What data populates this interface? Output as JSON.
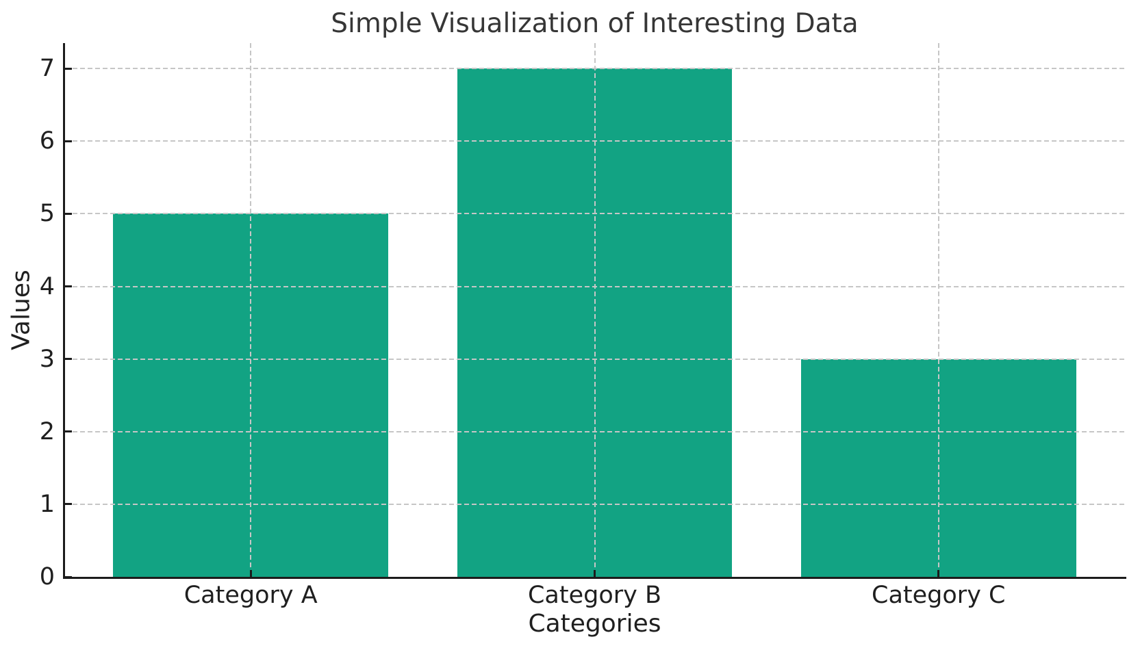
{
  "chart_data": {
    "type": "bar",
    "title": "Simple Visualization of Interesting Data",
    "xlabel": "Categories",
    "ylabel": "Values",
    "categories": [
      "Category A",
      "Category B",
      "Category C"
    ],
    "values": [
      5,
      7,
      3
    ],
    "yticks": [
      0,
      1,
      2,
      3,
      4,
      5,
      6,
      7
    ],
    "ylim": [
      0,
      7.35
    ],
    "xlim": [
      -0.54,
      2.54
    ],
    "bar_width": 0.8,
    "bar_color": "#12a383",
    "grid_color": "#c6c6c6",
    "grid_style": "dashed",
    "grid_above_bars": true,
    "tick_direction": "in",
    "spine_color": "#1c1c1c",
    "text_color": "#1f1f1f",
    "title_color": "#363636",
    "background_color": "#ffffff",
    "legend": null
  }
}
